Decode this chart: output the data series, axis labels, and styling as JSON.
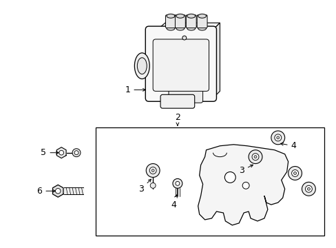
{
  "bg_color": "#ffffff",
  "line_color": "#000000",
  "label_color": "#000000",
  "font_size": 9,
  "fig_width": 4.89,
  "fig_height": 3.6,
  "dpi": 100
}
